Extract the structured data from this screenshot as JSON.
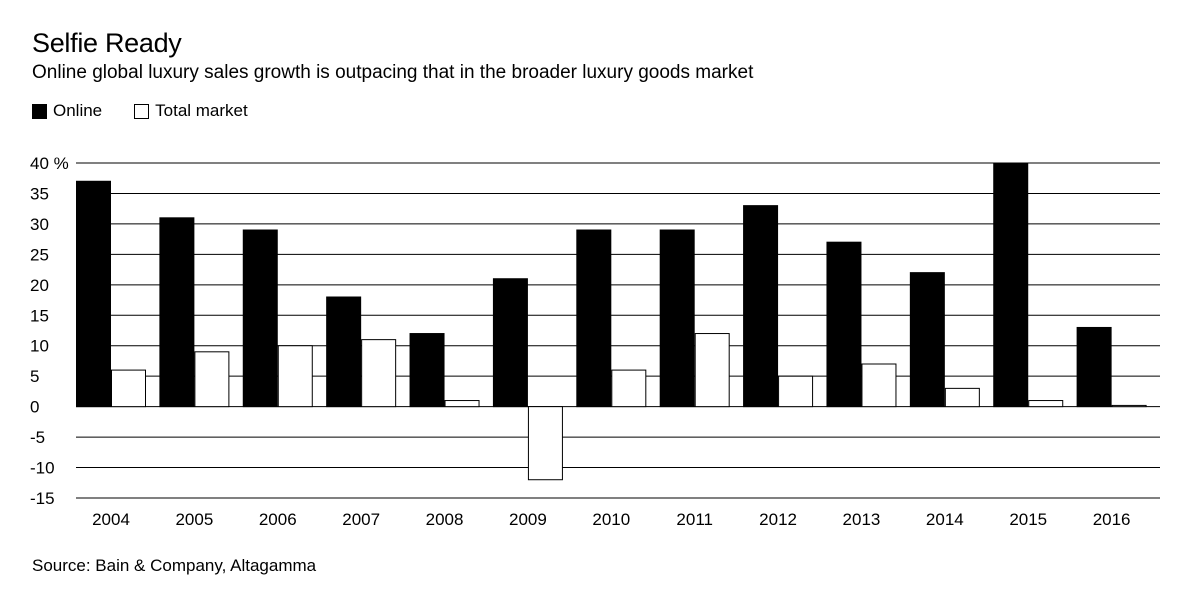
{
  "header": {
    "title": "Selfie Ready",
    "subtitle": "Online global luxury sales growth is outpacing that in the broader luxury goods market"
  },
  "legend": {
    "online_label": "Online",
    "total_label": "Total market"
  },
  "footer": {
    "source": "Source: Bain & Company, Altagamma"
  },
  "colors": {
    "online": "#000000",
    "total": "#ffffff",
    "grid": "#000000"
  },
  "chart_data": {
    "type": "bar",
    "title": "Selfie Ready",
    "xlabel": "",
    "ylabel": "%",
    "ylim": [
      -15,
      40
    ],
    "yticks": [
      -15,
      -10,
      -5,
      0,
      5,
      10,
      15,
      20,
      25,
      30,
      35,
      40
    ],
    "ytick_labels": [
      "-15",
      "-10",
      "-5",
      "0",
      "5",
      "10",
      "15",
      "20",
      "25",
      "30",
      "35",
      "40 %"
    ],
    "grid": true,
    "legend_position": "top-left",
    "categories": [
      "2004",
      "2005",
      "2006",
      "2007",
      "2008",
      "2009",
      "2010",
      "2011",
      "2012",
      "2013",
      "2014",
      "2015",
      "2016"
    ],
    "series": [
      {
        "name": "Online",
        "values": [
          37,
          31,
          29,
          18,
          12,
          21,
          29,
          29,
          33,
          27,
          22,
          40,
          13
        ]
      },
      {
        "name": "Total market",
        "values": [
          6,
          9,
          10,
          11,
          1,
          -12,
          6,
          12,
          5,
          7,
          3,
          1,
          0.2
        ]
      }
    ]
  }
}
